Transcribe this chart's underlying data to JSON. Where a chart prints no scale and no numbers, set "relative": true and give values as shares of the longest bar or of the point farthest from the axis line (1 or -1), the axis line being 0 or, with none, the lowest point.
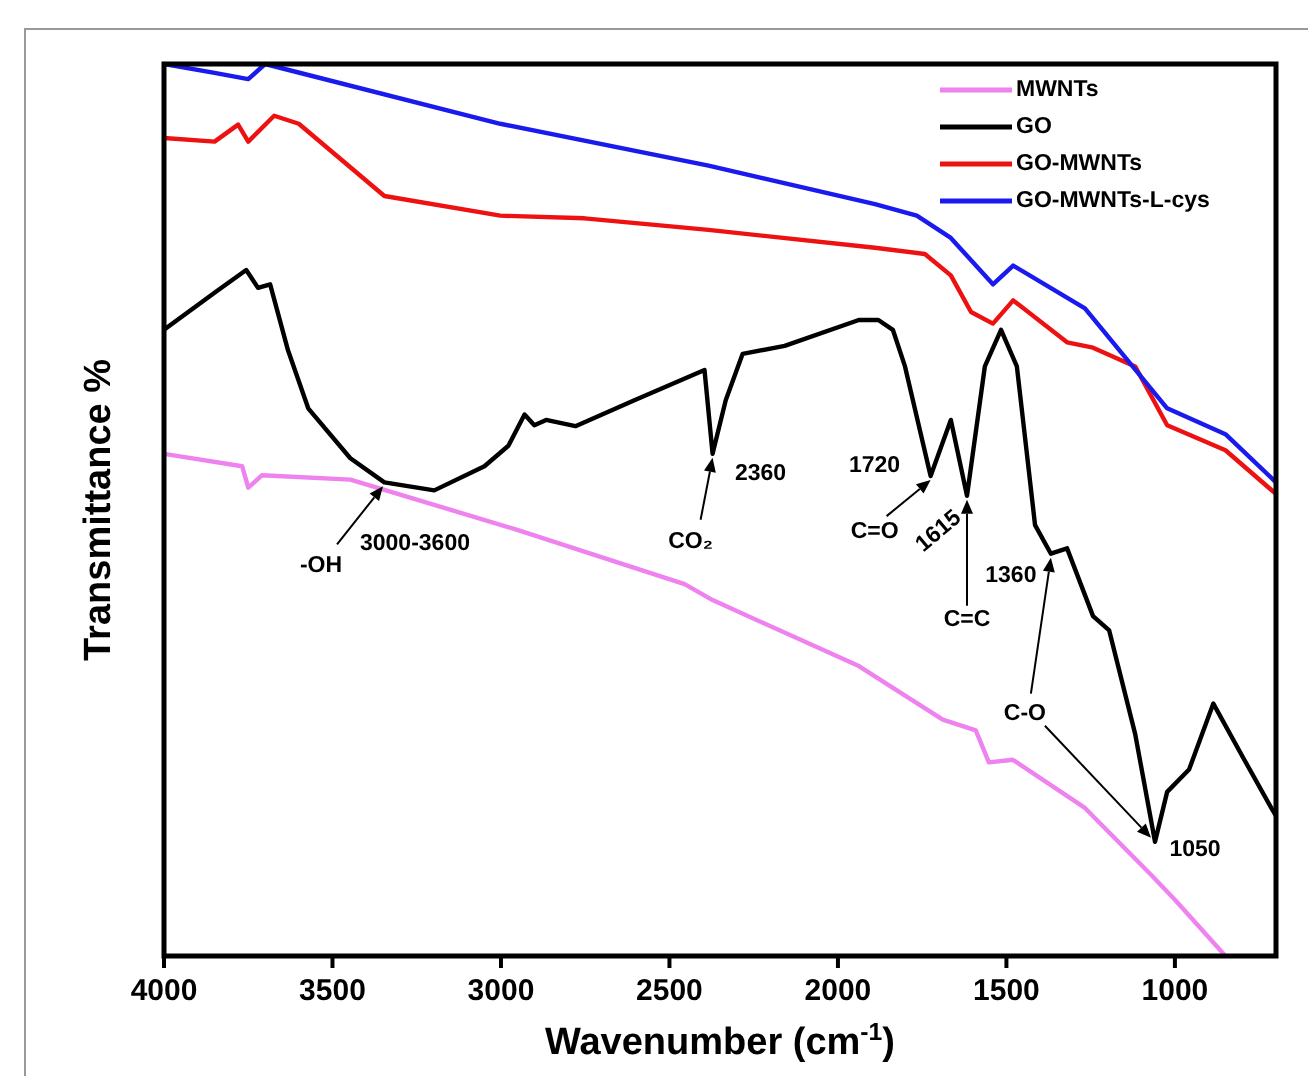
{
  "chart_data": {
    "type": "line",
    "xlabel": "Wavenumber (cm$^{-1}$)",
    "ylabel": "Transmittance %",
    "relative": true,
    "xlim": [
      4000,
      700
    ],
    "xticks": [
      4000,
      3500,
      3000,
      2500,
      2000,
      1500,
      1000
    ],
    "legend": "top right",
    "grid": false,
    "marker": "none",
    "line_style": "solid",
    "series": [
      {
        "name": "MWNTs",
        "color": "#ee82ee",
        "x": [
          4000,
          3768,
          3750,
          3709,
          3447,
          2954,
          2455,
          2372,
          1938,
          1689,
          1591,
          1552,
          1481,
          1267,
          1071,
          1000,
          850
        ],
        "values": [
          0.563,
          0.549,
          0.525,
          0.539,
          0.534,
          0.478,
          0.417,
          0.399,
          0.325,
          0.265,
          0.253,
          0.217,
          0.22,
          0.166,
          0.091,
          0.063,
          0.0
        ]
      },
      {
        "name": "GO",
        "color": "#000000",
        "x": [
          4000,
          3845,
          3756,
          3721,
          3685,
          3632,
          3572,
          3447,
          3346,
          3198,
          3049,
          2978,
          2930,
          2901,
          2866,
          2779,
          2604,
          2396,
          2372,
          2333,
          2283,
          2158,
          1938,
          1880,
          1837,
          1801,
          1725,
          1665,
          1617,
          1564,
          1516,
          1469,
          1415,
          1368,
          1320,
          1243,
          1195,
          1118,
          1059,
          1023,
          958,
          886,
          797,
          714,
          700
        ],
        "values": [
          0.702,
          0.745,
          0.769,
          0.749,
          0.753,
          0.679,
          0.614,
          0.558,
          0.531,
          0.522,
          0.549,
          0.572,
          0.607,
          0.595,
          0.601,
          0.594,
          0.623,
          0.657,
          0.563,
          0.623,
          0.675,
          0.684,
          0.713,
          0.713,
          0.702,
          0.661,
          0.538,
          0.601,
          0.516,
          0.661,
          0.702,
          0.661,
          0.483,
          0.451,
          0.457,
          0.381,
          0.365,
          0.249,
          0.128,
          0.184,
          0.209,
          0.283,
          0.222,
          0.166,
          0.157
        ]
      },
      {
        "name": "GO-MWNTs",
        "color": "#ee1111",
        "x": [
          4000,
          3850,
          3780,
          3750,
          3673,
          3600,
          3346,
          3002,
          2752,
          2384,
          1890,
          1742,
          1665,
          1605,
          1540,
          1480,
          1320,
          1243,
          1118,
          1023,
          850,
          700
        ],
        "values": [
          0.917,
          0.913,
          0.932,
          0.913,
          0.942,
          0.933,
          0.852,
          0.83,
          0.827,
          0.814,
          0.794,
          0.787,
          0.763,
          0.722,
          0.709,
          0.735,
          0.688,
          0.682,
          0.661,
          0.595,
          0.567,
          0.518
        ]
      },
      {
        "name": "GO-MWNTs-L-cys",
        "color": "#1a1aee",
        "x": [
          4000,
          3850,
          3750,
          3700,
          3002,
          2384,
          1890,
          1766,
          1665,
          1540,
          1480,
          1267,
          1023,
          850,
          700
        ],
        "values": [
          1.0,
          0.99,
          0.983,
          1.0,
          0.933,
          0.886,
          0.843,
          0.83,
          0.805,
          0.753,
          0.774,
          0.726,
          0.614,
          0.585,
          0.531
        ]
      }
    ],
    "annotations": [
      {
        "text": "-OH",
        "x": 3350,
        "y": 0.531
      },
      {
        "text": "3000-3600",
        "x": 3350,
        "y": 0.531
      },
      {
        "text": "CO₂",
        "x": 2372,
        "y": 0.563
      },
      {
        "text": "2360",
        "x": 2372,
        "y": 0.563
      },
      {
        "text": "1720",
        "x": 1725,
        "y": 0.538
      },
      {
        "text": "C=O",
        "x": 1725,
        "y": 0.538
      },
      {
        "text": "1615",
        "x": 1617,
        "y": 0.516
      },
      "C=C",
      {
        "text": "1360",
        "x": 1368,
        "y": 0.451
      },
      {
        "text": "C-O",
        "x": 1368,
        "y": 0.451
      },
      {
        "text": "1050",
        "x": 1059,
        "y": 0.128
      }
    ]
  }
}
